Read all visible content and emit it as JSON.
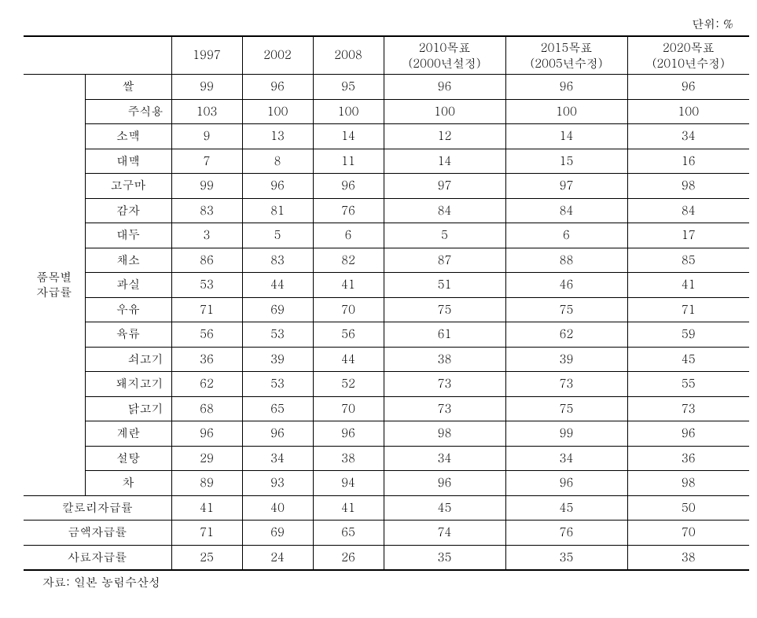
{
  "unit_label": "단위: %",
  "header": {
    "y1997": "1997",
    "y2002": "2002",
    "y2008": "2008",
    "t2010_line1": "2010목표",
    "t2010_line2": "(2000년설정)",
    "t2015_line1": "2015목표",
    "t2015_line2": "(2005년수정)",
    "t2020_line1": "2020목표",
    "t2020_line2": "(2010년수정)"
  },
  "section_label_line1": "품목별",
  "section_label_line2": "자급률",
  "rows": {
    "rice": {
      "label": "쌀",
      "v1": "99",
      "v2": "96",
      "v3": "95",
      "v4": "96",
      "v5": "96",
      "v6": "96"
    },
    "staple": {
      "label": "주식용",
      "v1": "103",
      "v2": "100",
      "v3": "100",
      "v4": "100",
      "v5": "100",
      "v6": "100"
    },
    "wheat": {
      "label": "소맥",
      "v1": "9",
      "v2": "13",
      "v3": "14",
      "v4": "12",
      "v5": "14",
      "v6": "34"
    },
    "barley": {
      "label": "대맥",
      "v1": "7",
      "v2": "8",
      "v3": "11",
      "v4": "14",
      "v5": "15",
      "v6": "16"
    },
    "sweet_potato": {
      "label": "고구마",
      "v1": "99",
      "v2": "96",
      "v3": "96",
      "v4": "97",
      "v5": "97",
      "v6": "98"
    },
    "potato": {
      "label": "감자",
      "v1": "83",
      "v2": "81",
      "v3": "76",
      "v4": "84",
      "v5": "84",
      "v6": "84"
    },
    "soybean": {
      "label": "대두",
      "v1": "3",
      "v2": "5",
      "v3": "6",
      "v4": "5",
      "v5": "6",
      "v6": "17"
    },
    "vegetable": {
      "label": "채소",
      "v1": "86",
      "v2": "83",
      "v3": "82",
      "v4": "87",
      "v5": "88",
      "v6": "85"
    },
    "fruit": {
      "label": "과실",
      "v1": "53",
      "v2": "44",
      "v3": "41",
      "v4": "51",
      "v5": "46",
      "v6": "41"
    },
    "milk": {
      "label": "우유",
      "v1": "71",
      "v2": "69",
      "v3": "70",
      "v4": "75",
      "v5": "75",
      "v6": "71"
    },
    "meat": {
      "label": "육류",
      "v1": "56",
      "v2": "53",
      "v3": "56",
      "v4": "61",
      "v5": "62",
      "v6": "59"
    },
    "beef": {
      "label": "쇠고기",
      "v1": "36",
      "v2": "39",
      "v3": "44",
      "v4": "38",
      "v5": "39",
      "v6": "45"
    },
    "pork": {
      "label": "돼지고기",
      "v1": "62",
      "v2": "53",
      "v3": "52",
      "v4": "73",
      "v5": "73",
      "v6": "55"
    },
    "chicken": {
      "label": "닭고기",
      "v1": "68",
      "v2": "65",
      "v3": "70",
      "v4": "73",
      "v5": "75",
      "v6": "73"
    },
    "egg": {
      "label": "계란",
      "v1": "96",
      "v2": "96",
      "v3": "96",
      "v4": "98",
      "v5": "99",
      "v6": "96"
    },
    "sugar": {
      "label": "설탕",
      "v1": "29",
      "v2": "34",
      "v3": "38",
      "v4": "34",
      "v5": "34",
      "v6": "36"
    },
    "tea": {
      "label": "차",
      "v1": "89",
      "v2": "93",
      "v3": "94",
      "v4": "96",
      "v5": "96",
      "v6": "98"
    }
  },
  "summary": {
    "calorie": {
      "label": "칼로리자급률",
      "v1": "41",
      "v2": "40",
      "v3": "41",
      "v4": "45",
      "v5": "45",
      "v6": "50"
    },
    "value": {
      "label": "금액자급률",
      "v1": "71",
      "v2": "69",
      "v3": "65",
      "v4": "74",
      "v5": "76",
      "v6": "70"
    },
    "feed": {
      "label": "사료자급률",
      "v1": "25",
      "v2": "24",
      "v3": "26",
      "v4": "35",
      "v5": "35",
      "v6": "38"
    }
  },
  "footer": "자료: 일본 농림수산성"
}
